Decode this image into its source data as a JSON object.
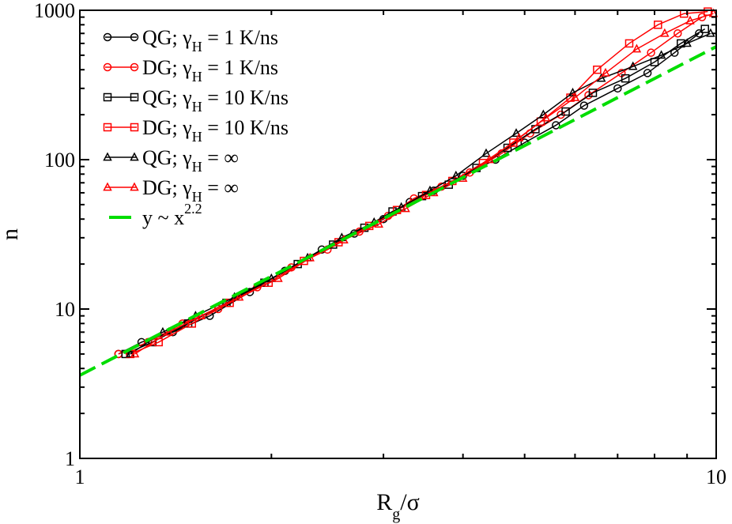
{
  "chart_data": {
    "type": "scatter",
    "x_scale": "log",
    "y_scale": "log",
    "xlim": [
      1,
      10
    ],
    "ylim": [
      1,
      1000
    ],
    "x_ticks": [
      {
        "value": 1,
        "label": "1"
      },
      {
        "value": 10,
        "label": "10"
      }
    ],
    "y_ticks": [
      {
        "value": 1,
        "label": "1"
      },
      {
        "value": 10,
        "label": "10"
      },
      {
        "value": 100,
        "label": "100"
      },
      {
        "value": 1000,
        "label": "1000"
      }
    ],
    "xlabel": {
      "main": "R",
      "sub": "g",
      "rest": "/σ"
    },
    "ylabel": "n",
    "legend": [
      {
        "series": "QG_1",
        "text": "QG;  γ",
        "sub": "H",
        "rest": " = 1 K/ns",
        "color": "#000000",
        "marker": "circle"
      },
      {
        "series": "DG_1",
        "text": "DG;  γ",
        "sub": "H",
        "rest": " = 1 K/ns",
        "color": "#ff0000",
        "marker": "circle"
      },
      {
        "series": "QG_10",
        "text": "QG;  γ",
        "sub": "H",
        "rest": " = 10 K/ns",
        "color": "#000000",
        "marker": "square"
      },
      {
        "series": "DG_10",
        "text": "DG;  γ",
        "sub": "H",
        "rest": " = 10 K/ns",
        "color": "#ff0000",
        "marker": "square"
      },
      {
        "series": "QG_inf",
        "text": "QG;  γ",
        "sub": "H",
        "rest": " = ∞",
        "color": "#000000",
        "marker": "triangle"
      },
      {
        "series": "DG_inf",
        "text": "DG;  γ",
        "sub": "H",
        "rest": " = ∞",
        "color": "#ff0000",
        "marker": "triangle"
      },
      {
        "series": "fit",
        "text": "y ~ x",
        "sup": "2.2",
        "color": "#00dd00",
        "marker": "dash"
      }
    ],
    "fit": {
      "name": "y ~ x^2.2",
      "prefactor": 3.6,
      "exponent": 2.2,
      "x_range": [
        1,
        10
      ],
      "color": "#00dd00"
    },
    "series": [
      {
        "name": "QG; γH = 1 K/ns",
        "color": "#000000",
        "marker": "circle",
        "x": [
          1.15,
          1.25,
          1.4,
          1.6,
          1.85,
          2.1,
          2.4,
          2.7,
          3.0,
          3.3,
          3.6,
          4.0,
          4.5,
          5.0,
          5.6,
          6.2,
          7.0,
          7.8,
          8.6,
          9.4
        ],
        "y": [
          5,
          6,
          7,
          9,
          13,
          18,
          25,
          32,
          40,
          52,
          62,
          78,
          100,
          130,
          170,
          230,
          300,
          380,
          520,
          700
        ]
      },
      {
        "name": "DG; γH = 1 K/ns",
        "color": "#ff0000",
        "marker": "circle",
        "x": [
          1.15,
          1.28,
          1.45,
          1.65,
          1.9,
          2.15,
          2.45,
          2.75,
          3.05,
          3.35,
          3.7,
          4.1,
          4.6,
          5.1,
          5.7,
          6.3,
          7.1,
          7.9,
          8.7,
          9.5
        ],
        "y": [
          5,
          6,
          8,
          10,
          14,
          19,
          25,
          33,
          42,
          55,
          66,
          82,
          110,
          150,
          200,
          270,
          380,
          520,
          700,
          900
        ]
      },
      {
        "name": "QG; γH = 10 K/ns",
        "color": "#000000",
        "marker": "square",
        "x": [
          1.18,
          1.3,
          1.48,
          1.7,
          1.95,
          2.2,
          2.5,
          2.8,
          3.1,
          3.45,
          3.8,
          4.2,
          4.7,
          5.2,
          5.8,
          6.4,
          7.2,
          8.0,
          8.8,
          9.6
        ],
        "y": [
          5,
          6,
          8,
          11,
          15,
          20,
          27,
          35,
          45,
          57,
          68,
          88,
          120,
          160,
          210,
          280,
          350,
          450,
          600,
          750
        ]
      },
      {
        "name": "DG; γH = 10 K/ns",
        "color": "#ff0000",
        "marker": "square",
        "x": [
          1.2,
          1.33,
          1.5,
          1.72,
          1.98,
          2.25,
          2.55,
          2.85,
          3.15,
          3.5,
          3.85,
          4.3,
          4.8,
          5.3,
          5.9,
          6.5,
          7.3,
          8.1,
          8.9,
          9.7
        ],
        "y": [
          5,
          6,
          8,
          11,
          15,
          21,
          28,
          36,
          46,
          58,
          72,
          95,
          130,
          180,
          260,
          400,
          600,
          800,
          950,
          980
        ]
      },
      {
        "name": "QG; γH = ∞",
        "color": "#000000",
        "marker": "triangle",
        "x": [
          1.2,
          1.35,
          1.52,
          1.75,
          2.0,
          2.28,
          2.58,
          2.9,
          3.2,
          3.55,
          3.9,
          4.35,
          4.85,
          5.35,
          5.95,
          6.6,
          7.4,
          8.2,
          9.0,
          9.8
        ],
        "y": [
          5,
          7,
          9,
          12,
          16,
          22,
          30,
          38,
          48,
          62,
          78,
          110,
          150,
          200,
          280,
          350,
          420,
          500,
          600,
          700
        ]
      },
      {
        "name": "DG; γH = ∞",
        "color": "#ff0000",
        "marker": "triangle",
        "x": [
          1.22,
          1.38,
          1.55,
          1.78,
          2.05,
          2.3,
          2.6,
          2.95,
          3.25,
          3.6,
          4.0,
          4.4,
          4.9,
          5.4,
          6.0,
          6.7,
          7.5,
          8.3,
          9.1,
          9.9
        ],
        "y": [
          5,
          7,
          9,
          12,
          16,
          22,
          29,
          37,
          47,
          60,
          75,
          100,
          140,
          190,
          260,
          380,
          550,
          700,
          850,
          950
        ]
      }
    ]
  }
}
